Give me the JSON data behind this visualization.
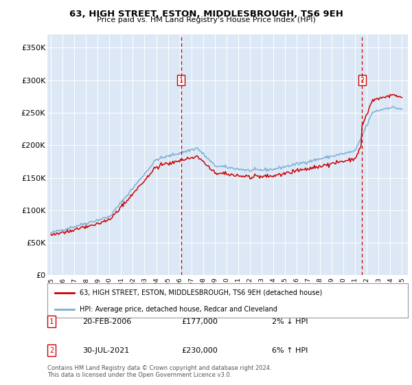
{
  "title": "63, HIGH STREET, ESTON, MIDDLESBROUGH, TS6 9EH",
  "subtitle": "Price paid vs. HM Land Registry's House Price Index (HPI)",
  "bg_color": "#dce8f5",
  "hpi_line_color": "#7bafd4",
  "price_line_color": "#cc0000",
  "ylim": [
    0,
    370000
  ],
  "yticks": [
    0,
    50000,
    100000,
    150000,
    200000,
    250000,
    300000,
    350000
  ],
  "ytick_labels": [
    "£0",
    "£50K",
    "£100K",
    "£150K",
    "£200K",
    "£250K",
    "£300K",
    "£350K"
  ],
  "xstart_year": 1995,
  "xend_year": 2025,
  "sale1_year": 2006.13,
  "sale1_price": 177000,
  "sale1_label": "1",
  "sale1_date": "20-FEB-2006",
  "sale1_hpi_diff": "2% ↓ HPI",
  "sale2_year": 2021.58,
  "sale2_price": 230000,
  "sale2_label": "2",
  "sale2_date": "30-JUL-2021",
  "sale2_hpi_diff": "6% ↑ HPI",
  "legend_label1": "63, HIGH STREET, ESTON, MIDDLESBROUGH, TS6 9EH (detached house)",
  "legend_label2": "HPI: Average price, detached house, Redcar and Cleveland",
  "footnote": "Contains HM Land Registry data © Crown copyright and database right 2024.\nThis data is licensed under the Open Government Licence v3.0."
}
